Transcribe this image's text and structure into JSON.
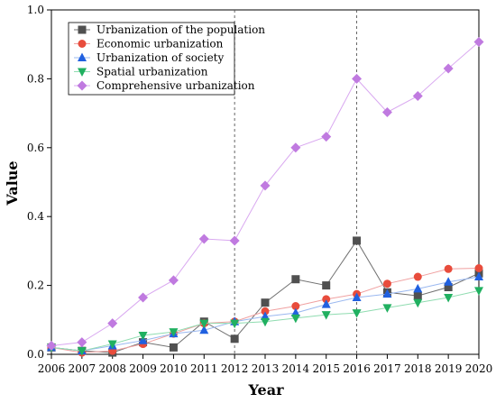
{
  "chart_data": {
    "type": "line",
    "xlabel": "Year",
    "ylabel": "Value",
    "x": [
      2006,
      2007,
      2008,
      2009,
      2010,
      2011,
      2012,
      2013,
      2014,
      2015,
      2016,
      2017,
      2018,
      2019,
      2020
    ],
    "xlim": [
      2006,
      2020
    ],
    "ylim": [
      0.0,
      1.0
    ],
    "yticks": [
      "0.0",
      "0.2",
      "0.4",
      "0.6",
      "0.8",
      "1.0"
    ],
    "reference_lines_x": [
      2012,
      2016
    ],
    "grid": false,
    "legend_position": "top-left",
    "series": [
      {
        "name": "Urbanization of the population",
        "marker": "square",
        "color": "#505050",
        "line_color": "#707070",
        "values": [
          0.02,
          0.01,
          0.005,
          0.035,
          0.02,
          0.095,
          0.045,
          0.15,
          0.218,
          0.2,
          0.33,
          0.18,
          0.17,
          0.195,
          0.235
        ]
      },
      {
        "name": "Economic urbanization",
        "marker": "circle",
        "color": "#e84c3c",
        "line_color": "#f0a0a0",
        "values": [
          0.02,
          0.005,
          0.01,
          0.03,
          0.06,
          0.09,
          0.095,
          0.125,
          0.14,
          0.16,
          0.175,
          0.205,
          0.225,
          0.248,
          0.25
        ]
      },
      {
        "name": "Urbanization of society",
        "marker": "triangle-up",
        "color": "#2060e0",
        "line_color": "#9ab8f0",
        "values": [
          0.02,
          0.01,
          0.025,
          0.04,
          0.06,
          0.07,
          0.095,
          0.11,
          0.12,
          0.145,
          0.165,
          0.175,
          0.19,
          0.21,
          0.225
        ]
      },
      {
        "name": "Spatial urbanization",
        "marker": "triangle-down",
        "color": "#20b060",
        "line_color": "#8fdcb0",
        "values": [
          0.02,
          0.01,
          0.03,
          0.055,
          0.065,
          0.09,
          0.09,
          0.095,
          0.105,
          0.115,
          0.12,
          0.135,
          0.15,
          0.165,
          0.185
        ]
      },
      {
        "name": "Comprehensive urbanization",
        "marker": "diamond",
        "color": "#c07ae0",
        "line_color": "#d9a8f0",
        "values": [
          0.025,
          0.035,
          0.09,
          0.165,
          0.215,
          0.335,
          0.33,
          0.49,
          0.6,
          0.632,
          0.8,
          0.703,
          0.75,
          0.83,
          0.907
        ]
      }
    ]
  }
}
